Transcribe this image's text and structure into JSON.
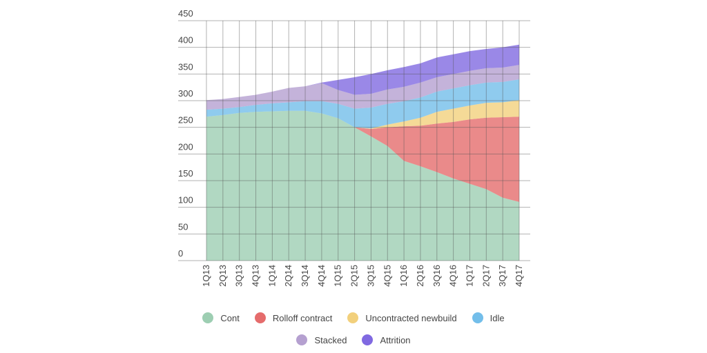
{
  "chart_data": {
    "type": "area",
    "stacked": true,
    "title": "",
    "xlabel": "",
    "ylabel": "",
    "ylim": [
      0,
      450
    ],
    "yticks": [
      0,
      50,
      100,
      150,
      200,
      250,
      300,
      350,
      400,
      450
    ],
    "grid": true,
    "legend_position": "bottom",
    "categories": [
      "1Q13",
      "2Q13",
      "3Q13",
      "4Q13",
      "1Q14",
      "2Q14",
      "3Q14",
      "4Q14",
      "1Q15",
      "2Q15",
      "3Q15",
      "4Q15",
      "1Q16",
      "2Q16",
      "3Q16",
      "4Q16",
      "1Q17",
      "2Q17",
      "3Q17",
      "4Q17"
    ],
    "series": [
      {
        "name": "Cont",
        "color": "#8cc5a5",
        "values": [
          270,
          273,
          277,
          279,
          280,
          281,
          281,
          276,
          267,
          250,
          233,
          215,
          187,
          177,
          166,
          154,
          144,
          134,
          118,
          110
        ]
      },
      {
        "name": "Rolloff contract",
        "color": "#e05252",
        "values": [
          0,
          0,
          0,
          0,
          0,
          0,
          0,
          0,
          0,
          0,
          14,
          35,
          65,
          76,
          91,
          106,
          121,
          134,
          151,
          160
        ]
      },
      {
        "name": "Uncontracted newbuild",
        "color": "#f0c865",
        "values": [
          0,
          0,
          0,
          0,
          0,
          0,
          0,
          0,
          0,
          0,
          1,
          5,
          9,
          15,
          22,
          25,
          26,
          28,
          28,
          31
        ]
      },
      {
        "name": "Idle",
        "color": "#5ab3e6",
        "values": [
          13,
          12,
          11,
          13,
          15,
          16,
          18,
          23,
          27,
          35,
          39,
          39,
          38,
          38,
          38,
          38,
          38,
          38,
          38,
          39
        ]
      },
      {
        "name": "Stacked",
        "color": "#a88fc8",
        "values": [
          18,
          18,
          19,
          19,
          22,
          27,
          28,
          34,
          26,
          26,
          26,
          27,
          27,
          28,
          27,
          27,
          27,
          27,
          27,
          27
        ]
      },
      {
        "name": "Attrition",
        "color": "#6a4fdc",
        "values": [
          0,
          0,
          0,
          0,
          0,
          0,
          0,
          1,
          19,
          33,
          37,
          36,
          37,
          36,
          37,
          37,
          37,
          36,
          38,
          38
        ]
      }
    ]
  }
}
